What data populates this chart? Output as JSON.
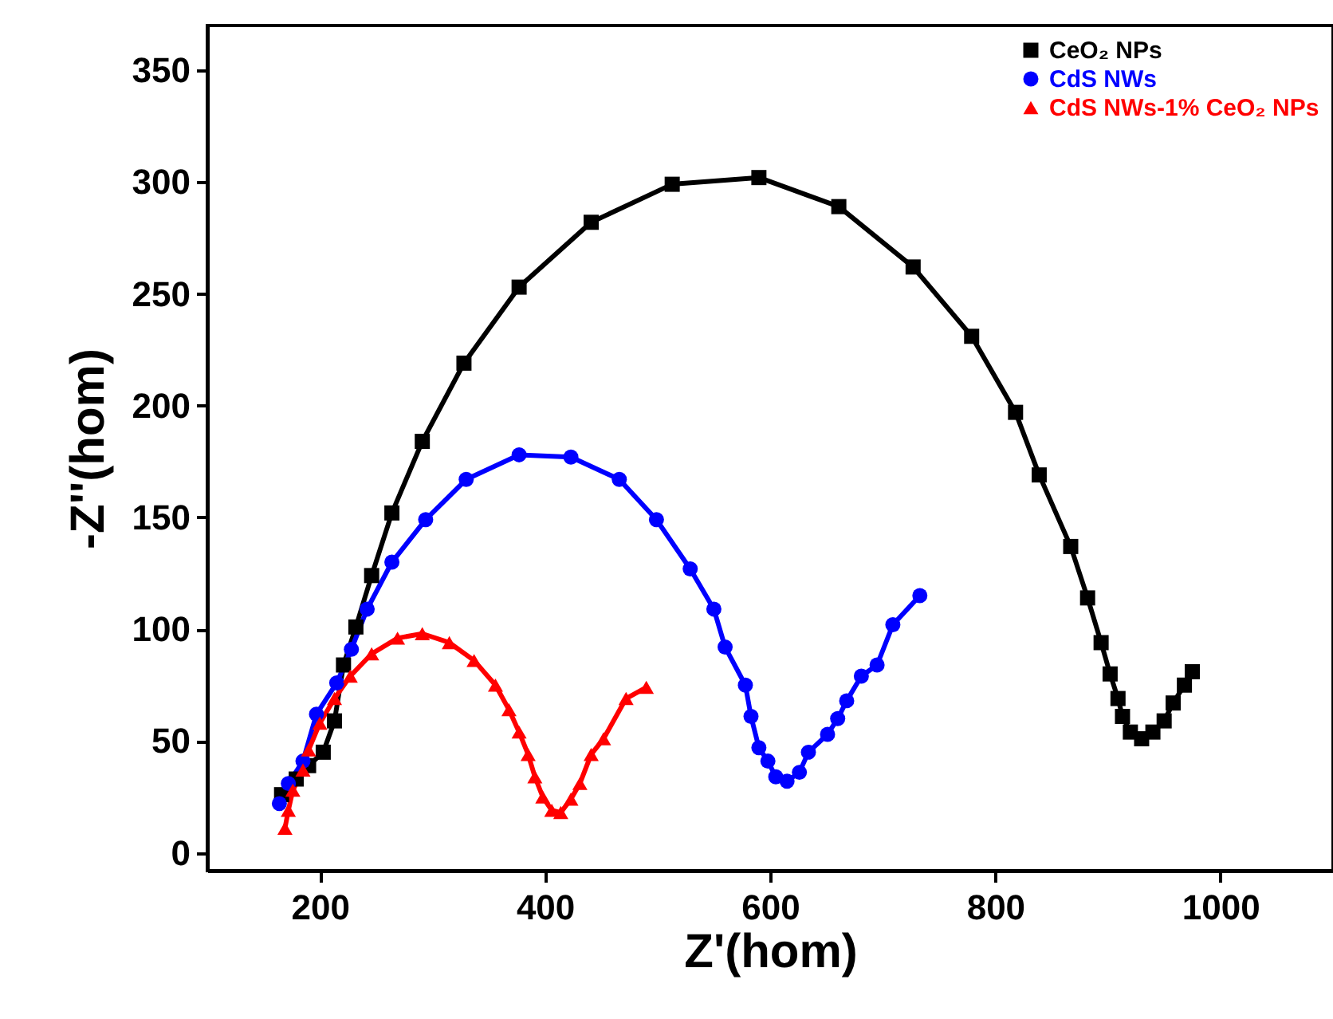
{
  "chart_data": {
    "type": "line",
    "xlabel": "Z'(hom)",
    "ylabel": "-Z''(hom)",
    "xlim": [
      100,
      1100
    ],
    "xticks": [
      200,
      400,
      600,
      800,
      1000
    ],
    "ylim": [
      -8,
      370
    ],
    "yticks": [
      0,
      50,
      100,
      150,
      200,
      250,
      300,
      350
    ],
    "grid": false,
    "legend": "top right",
    "series": [
      {
        "name": "CeO₂ NPs",
        "color": "#000000",
        "marker": "square",
        "x": [
          166,
          179,
          190,
          203,
          213,
          221,
          232,
          246,
          264,
          291,
          328,
          377,
          441,
          513,
          590,
          661,
          727,
          779,
          818,
          839,
          867,
          882,
          894,
          902,
          909,
          913,
          920,
          930,
          940,
          950,
          958,
          968,
          975
        ],
        "values": [
          26,
          33,
          39,
          45,
          59,
          84,
          101,
          124,
          152,
          184,
          219,
          253,
          282,
          299,
          302,
          289,
          262,
          231,
          197,
          169,
          137,
          114,
          94,
          80,
          69,
          61,
          54,
          51,
          54,
          59,
          67,
          75,
          81
        ]
      },
      {
        "name": "CdS NWs",
        "color": "#0000ff",
        "marker": "circle",
        "x": [
          164,
          172,
          185,
          197,
          215,
          228,
          242,
          264,
          294,
          330,
          377,
          423,
          466,
          499,
          529,
          550,
          560,
          578,
          583,
          590,
          598,
          605,
          615,
          626,
          634,
          651,
          660,
          668,
          681,
          695,
          709,
          733
        ],
        "values": [
          22,
          31,
          41,
          62,
          76,
          91,
          109,
          130,
          149,
          167,
          178,
          177,
          167,
          149,
          127,
          109,
          92,
          75,
          61,
          47,
          41,
          34,
          32,
          36,
          45,
          53,
          60,
          68,
          79,
          84,
          102,
          115
        ]
      },
      {
        "name": "CdS NWs-1% CeO₂ NPs",
        "color": "#ff0000",
        "marker": "triangle",
        "x": [
          169,
          172,
          176,
          185,
          190,
          200,
          213,
          227,
          246,
          269,
          291,
          315,
          337,
          356,
          368,
          377,
          385,
          391,
          398,
          406,
          414,
          423,
          431,
          441,
          452,
          472,
          490
        ],
        "values": [
          11,
          19,
          28,
          37,
          46,
          58,
          69,
          79,
          89,
          96,
          98,
          94,
          86,
          75,
          64,
          54,
          44,
          34,
          25,
          19,
          18,
          24,
          31,
          44,
          51,
          69,
          74
        ]
      }
    ]
  }
}
